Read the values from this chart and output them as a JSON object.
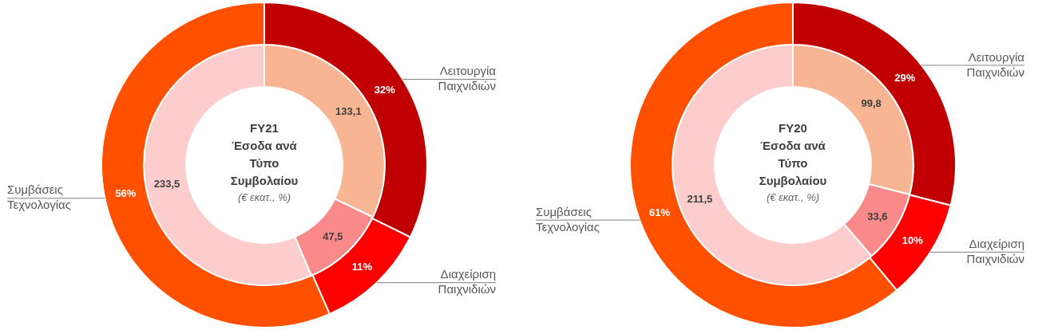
{
  "chart_data": [
    {
      "type": "donut",
      "title": "FY21\nΈσοδα ανά Τύπο Συμβολαίου",
      "subtitle": "(€ εκατ., %)",
      "categories": [
        "Λειτουργία Παιχνιδιών",
        "Διαχείριση Παιχνιδιών",
        "Συμβάσεις Τεχνολογίας"
      ],
      "series": [
        {
          "values": [
            32,
            11,
            56
          ],
          "colors": [
            "#c00000",
            "#ff0000",
            "#ff5000"
          ],
          "value_labels": [
            "32%",
            "11%",
            "56%"
          ]
        },
        {
          "values": [
            133.1,
            47.5,
            233.5
          ],
          "colors": [
            "#f8b593",
            "#fa8a8a",
            "#fdcccc"
          ],
          "value_labels": [
            "133,1",
            "47,5",
            "233,5"
          ]
        }
      ]
    },
    {
      "type": "donut",
      "title": "FY20\nΈσοδα ανά Τύπο Συμβολαίου",
      "subtitle": "(€ εκατ., %)",
      "categories": [
        "Λειτουργία Παιχνιδιών",
        "Διαχείριση Παιχνιδιών",
        "Συμβάσεις Τεχνολογίας"
      ],
      "series": [
        {
          "values": [
            29,
            10,
            61
          ],
          "colors": [
            "#c00000",
            "#ff0000",
            "#ff5000"
          ],
          "value_labels": [
            "29%",
            "10%",
            "61%"
          ]
        },
        {
          "values": [
            99.8,
            33.6,
            211.5
          ],
          "colors": [
            "#f8b593",
            "#fa8a8a",
            "#fdcccc"
          ],
          "value_labels": [
            "99,8",
            "33,6",
            "211,5"
          ]
        }
      ]
    }
  ]
}
